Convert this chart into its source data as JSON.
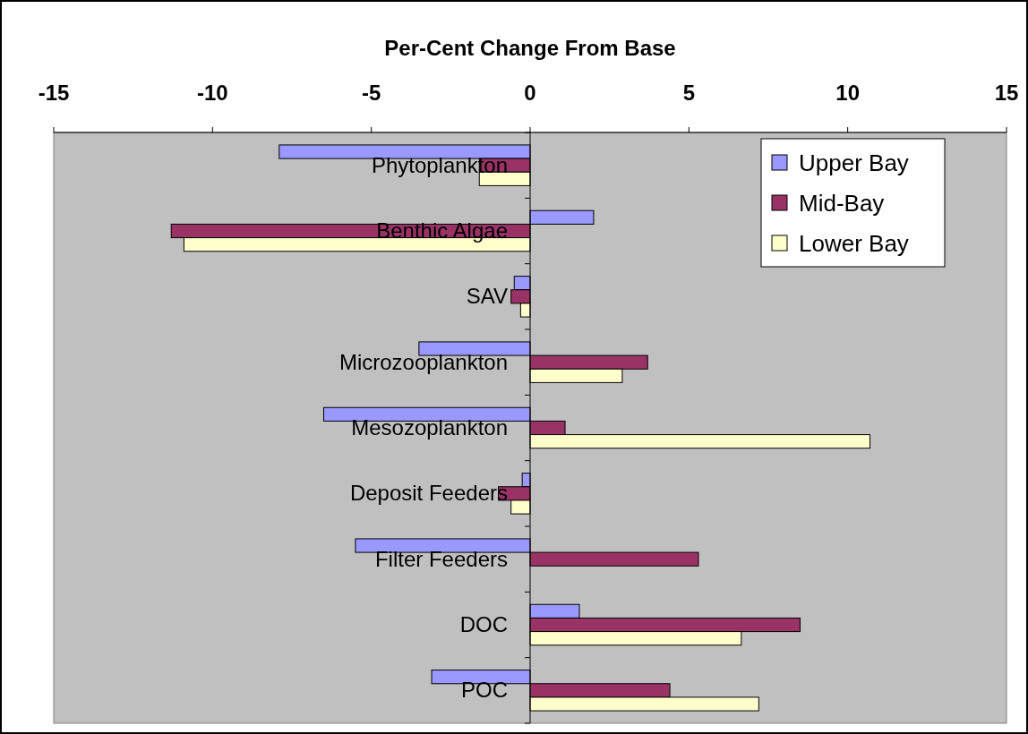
{
  "chart_data": {
    "type": "bar",
    "orientation": "horizontal",
    "title": "Per-Cent Change From Base",
    "categories": [
      "Phytoplankton",
      "Benthic Algae",
      "SAV",
      "Microzooplankton",
      "Mesozoplankton",
      "Deposit Feeders",
      "Filter Feeders",
      "DOC",
      "POC"
    ],
    "series": [
      {
        "name": "Upper Bay",
        "color": "#9999ff",
        "values": [
          -7.9,
          2.0,
          -0.5,
          -3.5,
          -6.5,
          -0.25,
          -5.5,
          1.55,
          -3.1
        ]
      },
      {
        "name": "Mid-Bay",
        "color": "#993366",
        "values": [
          -1.6,
          -11.3,
          -0.6,
          3.7,
          1.1,
          -1.0,
          5.3,
          8.5,
          4.4
        ]
      },
      {
        "name": "Lower Bay",
        "color": "#ffffcc",
        "values": [
          -1.6,
          -10.9,
          -0.3,
          2.9,
          10.7,
          -0.6,
          0,
          6.65,
          7.2
        ]
      }
    ],
    "xlim": [
      -15,
      15
    ],
    "xticks": [
      -15,
      -10,
      -5,
      0,
      5,
      10,
      15
    ],
    "grid": false,
    "legend": "top right"
  }
}
